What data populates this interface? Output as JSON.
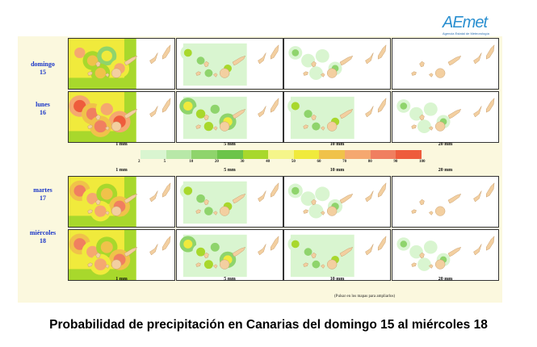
{
  "logo": {
    "mark": "AEmet",
    "sub": "Agencia Estatal de Meteorología"
  },
  "days": [
    {
      "name": "domingo",
      "num": "15"
    },
    {
      "name": "lunes",
      "num": "16"
    },
    {
      "name": "martes",
      "num": "17"
    },
    {
      "name": "miércoles",
      "num": "18"
    }
  ],
  "thresholds": [
    "1 mm",
    "5 mm",
    "10 mm",
    "20 mm"
  ],
  "legend": {
    "colors": [
      "#d9f5d0",
      "#b8e8a8",
      "#8fd46c",
      "#6cc44a",
      "#a8d82c",
      "#f5f58a",
      "#f0ea3c",
      "#f0c24a",
      "#f5a870",
      "#f07f60",
      "#ee5c3c"
    ],
    "ticks": [
      "2",
      "5",
      "10",
      "20",
      "30",
      "40",
      "50",
      "60",
      "70",
      "80",
      "90",
      "100"
    ]
  },
  "footnote": "(Pulsar en los mapas para ampliarlos)",
  "caption": "Probabilidad de precipitación en Canarias del domingo 15 al miércoles 18"
}
